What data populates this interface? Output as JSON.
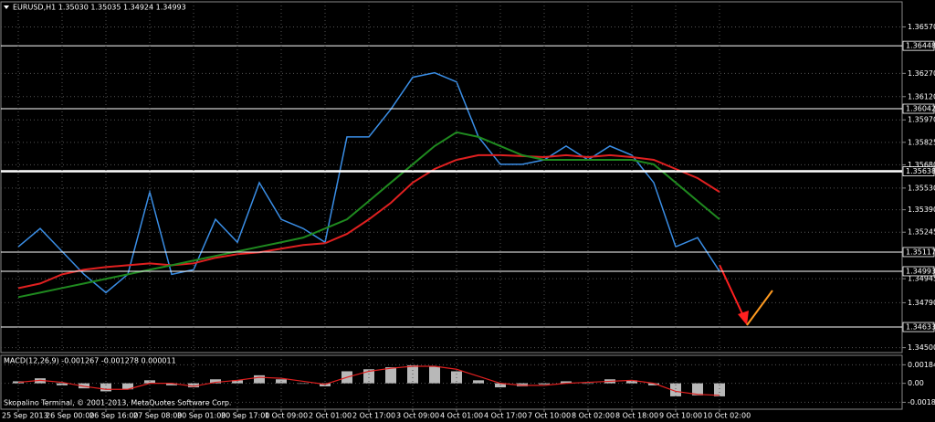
{
  "chart_data": [
    {
      "type": "line",
      "title": "EURUSD,H1  1.35030 1.35035 1.34924 1.34993",
      "categories": [
        "25 Sep 2013",
        null,
        "26 Sep 00:00",
        null,
        "26 Sep 16:00",
        null,
        "27 Sep 08:00",
        null,
        "30 Sep 01:00",
        null,
        "30 Sep 17:00",
        null,
        "1 Oct 09:00",
        null,
        "2 Oct 01:00",
        null,
        "2 Oct 17:00",
        null,
        "3 Oct 09:00",
        null,
        "4 Oct 01:00",
        null,
        "4 Oct 17:00",
        null,
        "7 Oct 10:00",
        null,
        "8 Oct 02:00",
        null,
        "8 Oct 18:00",
        null,
        "9 Oct 10:00",
        null,
        "10 Oct 02:00"
      ],
      "series": [
        {
          "color": "#3a8ee6",
          "values": [
            1.35151,
            1.35269,
            1.35121,
            1.34973,
            1.34855,
            1.34973,
            1.35505,
            1.34973,
            1.35003,
            1.35328,
            1.3518,
            1.35565,
            1.35328,
            1.35269,
            1.3518,
            1.3586,
            1.3586,
            1.36038,
            1.36245,
            1.36274,
            1.36215,
            1.3586,
            1.35683,
            1.35683,
            1.35712,
            1.35801,
            1.35712,
            1.35801,
            1.35742,
            1.35565,
            1.35151,
            1.3521,
            1.34993
          ]
        },
        {
          "color": "#e02020",
          "values": [
            1.34884,
            1.34914,
            1.34973,
            1.35003,
            1.3502,
            1.35032,
            1.35044,
            1.35032,
            1.35044,
            1.3508,
            1.35103,
            1.35115,
            1.35139,
            1.35162,
            1.35174,
            1.35234,
            1.35328,
            1.35434,
            1.35565,
            1.35653,
            1.35712,
            1.35742,
            1.35742,
            1.35736,
            1.3573,
            1.35742,
            1.3573,
            1.35742,
            1.3573,
            1.35712,
            1.35653,
            1.35594,
            1.35505
          ]
        },
        {
          "color": "#1f8a1f",
          "values": [
            1.34826,
            1.34855,
            1.34885,
            1.34914,
            1.34944,
            1.34973,
            1.35003,
            1.35032,
            1.35062,
            1.35092,
            1.35121,
            1.35151,
            1.3518,
            1.3521,
            1.35269,
            1.35328,
            1.35446,
            1.35565,
            1.35683,
            1.35801,
            1.3589,
            1.3586,
            1.35801,
            1.35742,
            1.35712,
            1.35712,
            1.35712,
            1.35712,
            1.35712,
            1.35683,
            1.35565,
            1.35446,
            1.35328
          ]
        }
      ],
      "ylim": [
        1.3448,
        1.3672
      ],
      "yticks": [
        {
          "value": 1.3657,
          "label": "1.36570"
        },
        {
          "value": 1.3627,
          "label": "1.36270"
        },
        {
          "value": 1.3612,
          "label": "1.36120"
        },
        {
          "value": 1.3597,
          "label": "1.35970"
        },
        {
          "value": 1.35825,
          "label": "1.35825"
        },
        {
          "value": 1.3568,
          "label": "1.35680"
        },
        {
          "value": 1.3553,
          "label": "1.35530"
        },
        {
          "value": 1.3539,
          "label": "1.35390"
        },
        {
          "value": 1.35245,
          "label": "1.35245"
        },
        {
          "value": 1.34945,
          "label": "1.34945"
        },
        {
          "value": 1.3479,
          "label": "1.34790"
        },
        {
          "value": 1.345,
          "label": "1.34500"
        }
      ],
      "levels": [
        {
          "value": 1.36448,
          "label": "1.36448"
        },
        {
          "value": 1.36042,
          "label": "1.36042"
        },
        {
          "value": 1.35638,
          "label": "1.35638"
        },
        {
          "value": 1.35117,
          "label": "1.35117"
        },
        {
          "value": 1.34993,
          "label": "1.34993"
        },
        {
          "value": 1.34633,
          "label": "1.34633"
        }
      ],
      "grid": true,
      "footer": "Skopalino Terminal, © 2001-2013, MetaQuotes Software Corp."
    },
    {
      "type": "bar",
      "title": "MACD(12,26,9) -0.001267 -0.001278 0.000011",
      "color": "#b8b8b8",
      "values": [
        0.0002,
        0.0005,
        -0.0002,
        -0.0005,
        -0.0008,
        -0.0006,
        0.0003,
        -0.0002,
        -0.0004,
        0.0004,
        0.0003,
        0.0008,
        0.0004,
        0,
        -0.0003,
        0.0012,
        0.0014,
        0.0016,
        0.0018,
        0.0017,
        0.0012,
        0.0003,
        -0.0004,
        -0.0003,
        -0.0001,
        0.0002,
        0,
        0.0004,
        0.0003,
        -0.0002,
        -0.0013,
        -0.0012,
        -0.0013
      ],
      "series": [
        {
          "color": "#e02020",
          "values": [
            0.0001,
            0.0003,
            0.0001,
            -0.0003,
            -0.0006,
            -0.0006,
            0,
            0,
            -0.0003,
            0.0001,
            0.0003,
            0.0006,
            0.0005,
            0.0002,
            -0.0001,
            0.0006,
            0.0012,
            0.0015,
            0.0017,
            0.0017,
            0.0014,
            0.0007,
            0,
            -0.0002,
            -0.0002,
            0,
            0.0001,
            0.0002,
            0.0003,
            0,
            -0.0008,
            -0.0011,
            -0.0012
          ]
        }
      ],
      "ylim": [
        -0.0024,
        0.0027
      ],
      "yticks": [
        0.001848,
        {
          "value": 0,
          "label": "0.00"
        },
        -0.001891
      ]
    }
  ]
}
